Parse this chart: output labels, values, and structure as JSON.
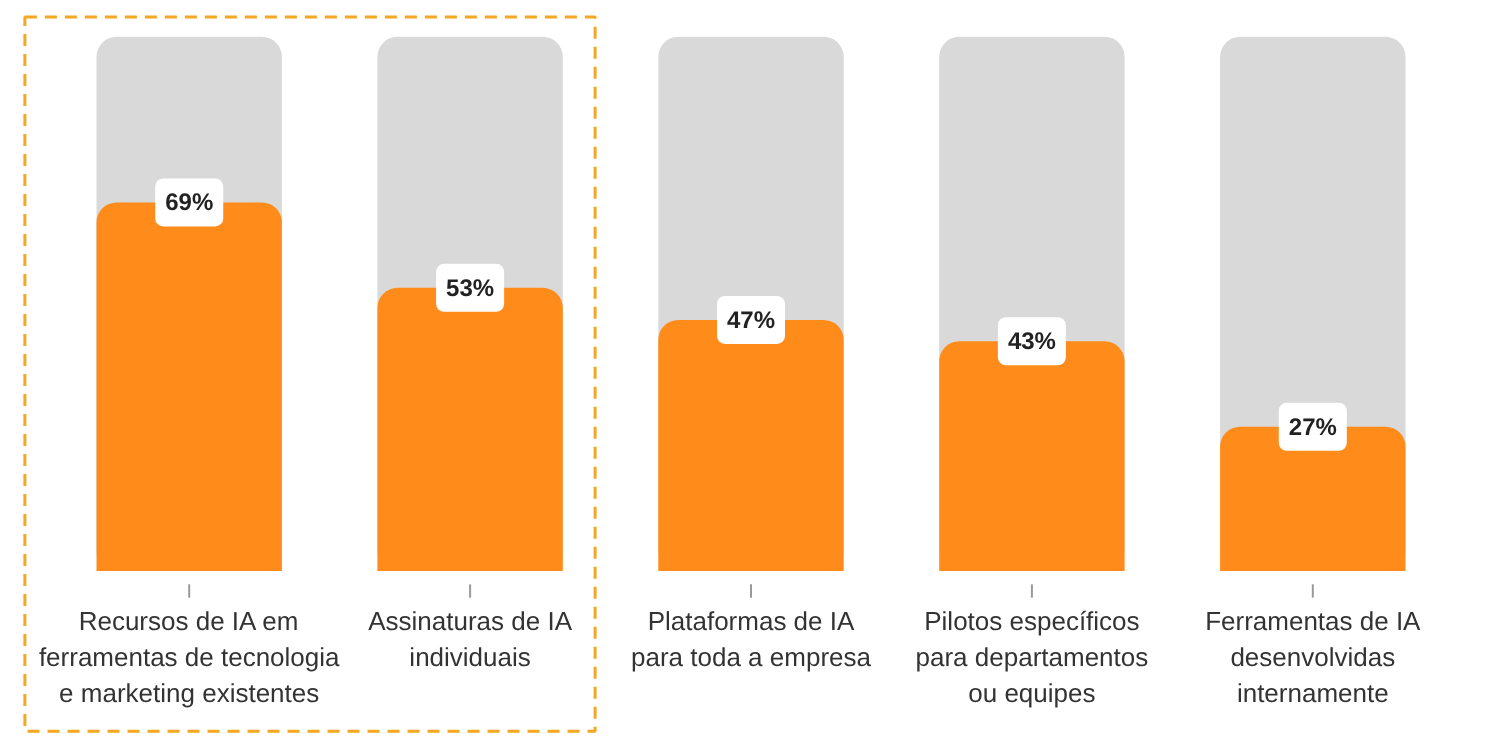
{
  "chart_data": {
    "type": "bar",
    "categories": [
      "Recursos de IA em\nferramentas de tecnologia\ne marketing existentes",
      "Assinaturas de IA\nindividuais",
      "Plataformas de IA\npara toda a empresa",
      "Pilotos específicos\npara departamentos\nou equipes",
      "Ferramentas de IA\ndesenvolvidas\ninternamente"
    ],
    "values": [
      69,
      53,
      47,
      43,
      27
    ],
    "color": "#ff8c1a",
    "value_labels": [
      "69%",
      "53%",
      "47%",
      "43%",
      "27%"
    ],
    "ylim": [
      0,
      100
    ]
  }
}
